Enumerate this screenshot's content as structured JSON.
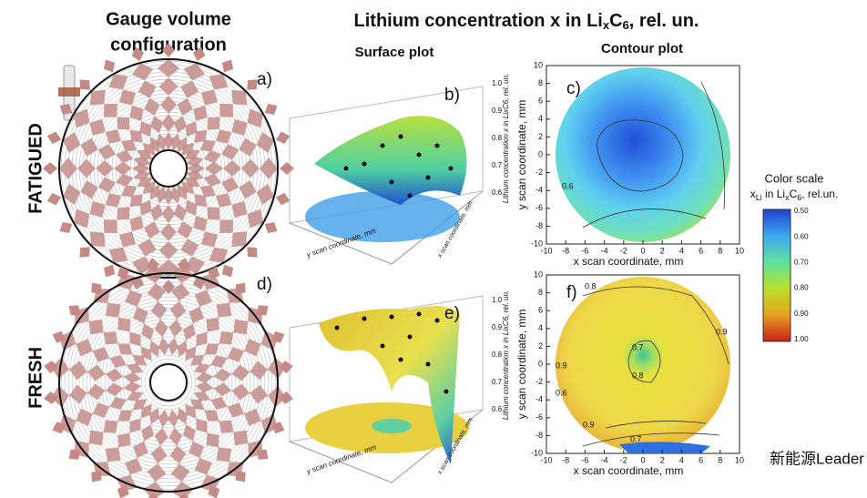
{
  "header": {
    "left_title": [
      "Gauge volume",
      "configuration"
    ],
    "main_title": [
      "Lithium concentration x in Li",
      "x",
      "C",
      "6",
      ", rel. un."
    ],
    "surface_heading": "Surface plot",
    "contour_heading": "Contour plot"
  },
  "rows": [
    "FATIGUED",
    "FRESH"
  ],
  "panels": [
    "a)",
    "b)",
    "c)",
    "d)",
    "e)",
    "f)"
  ],
  "surface": {
    "z_ticks": [
      "1.0",
      "0.9",
      "0.8",
      "0.7",
      "0.6"
    ],
    "z_label": "Lithium concentration x in LixC6, rel. un.",
    "y_label": "y scan coordinate, mm",
    "x_label": "x scan coordinate, mm"
  },
  "contour": {
    "ticks": [
      "-10",
      "-8",
      "-6",
      "-4",
      "-2",
      "0",
      "2",
      "4",
      "6",
      "8",
      "10"
    ],
    "x_label": "x scan coordinate, mm",
    "y_label": "y scan coordinate, mm",
    "fatigued_labels": [
      "0.6"
    ],
    "fresh_labels": [
      "0.8",
      "0.9",
      "0.7",
      "0.8",
      "0.9",
      "0.6",
      "0.9",
      "0.7"
    ]
  },
  "color_scale": {
    "title": "Color scale",
    "subtitle": [
      "x",
      "Li",
      " in Li",
      "x",
      "C",
      "6",
      ", rel.un."
    ],
    "ticks": [
      "0.50",
      "0.60",
      "0.70",
      "0.80",
      "0.90",
      "1.00"
    ]
  },
  "watermark": "新能源Leader"
}
